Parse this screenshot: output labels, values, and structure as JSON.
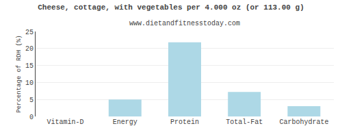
{
  "chart_data": {
    "type": "bar",
    "title": "Cheese, cottage, with vegetables per 4.000 oz (or 113.00 g)",
    "subtitle": "www.dietandfitnesstoday.com",
    "categories": [
      "Vitamin-D",
      "Energy",
      "Protein",
      "Total-Fat",
      "Carbohydrate"
    ],
    "values": [
      0,
      5.0,
      21.8,
      7.2,
      3.0
    ],
    "color": "#add8e6",
    "ylabel": "Percentage of RDH (%)",
    "ylim": [
      0,
      25
    ],
    "yticks": [
      0,
      5,
      10,
      15,
      20,
      25
    ],
    "grid": true
  }
}
